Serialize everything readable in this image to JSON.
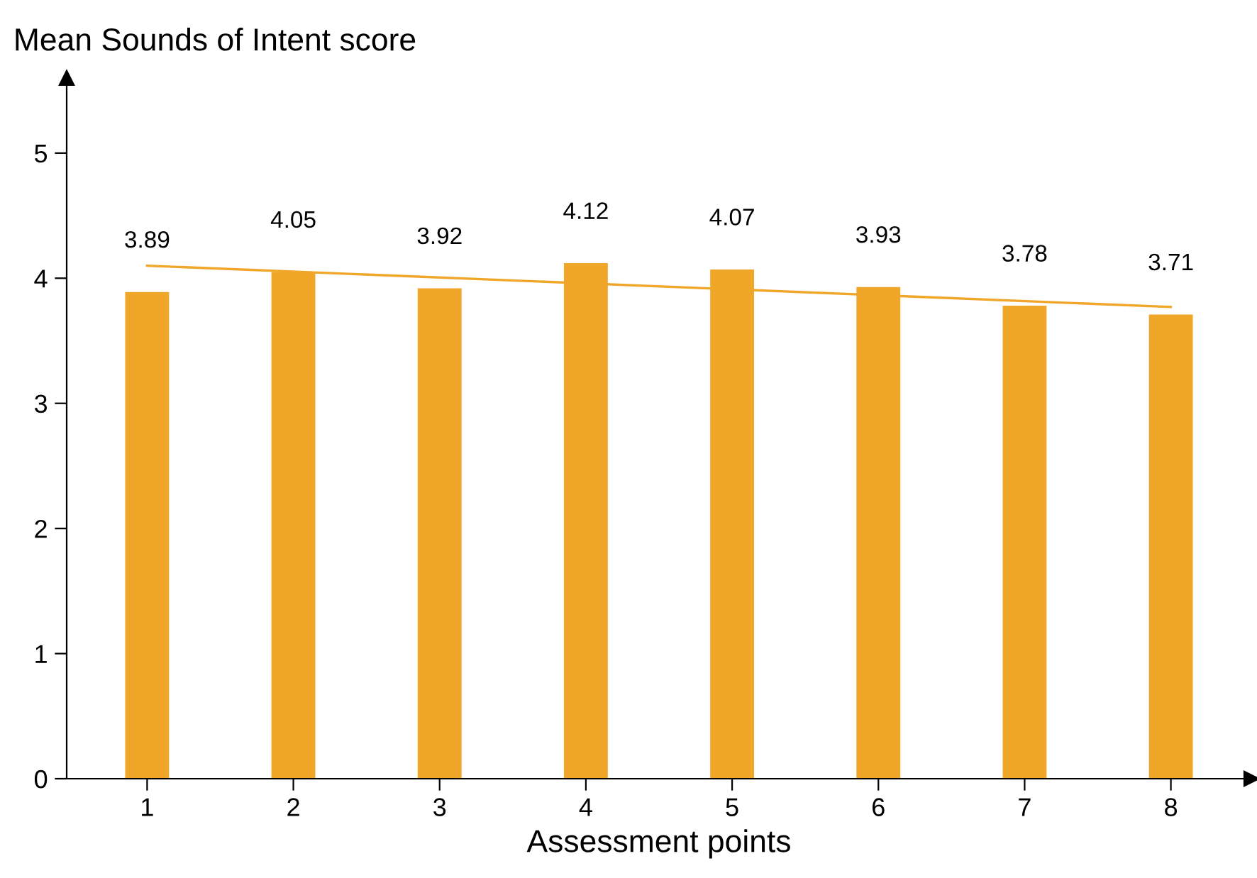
{
  "chart_data": {
    "type": "bar",
    "ylabel": "Mean Sounds of Intent score",
    "xlabel": "Assessment points",
    "categories": [
      "1",
      "2",
      "3",
      "4",
      "5",
      "6",
      "7",
      "8"
    ],
    "series": [
      {
        "color": "#f0a629",
        "values": [
          3.89,
          4.05,
          3.92,
          4.12,
          4.07,
          3.93,
          3.78,
          3.71
        ],
        "value_labels": [
          "3.89",
          "4.05",
          "3.92",
          "4.12",
          "4.07",
          "3.93",
          "3.78",
          "3.71"
        ]
      },
      {
        "type": "line",
        "color": "#f0a629",
        "x": [
          "1",
          "8"
        ],
        "values": [
          4.1,
          3.77
        ]
      }
    ],
    "ylim": [
      0,
      5.6
    ],
    "yticks": [
      0,
      1,
      2,
      3,
      4,
      5
    ],
    "grid": false,
    "legend": false
  }
}
